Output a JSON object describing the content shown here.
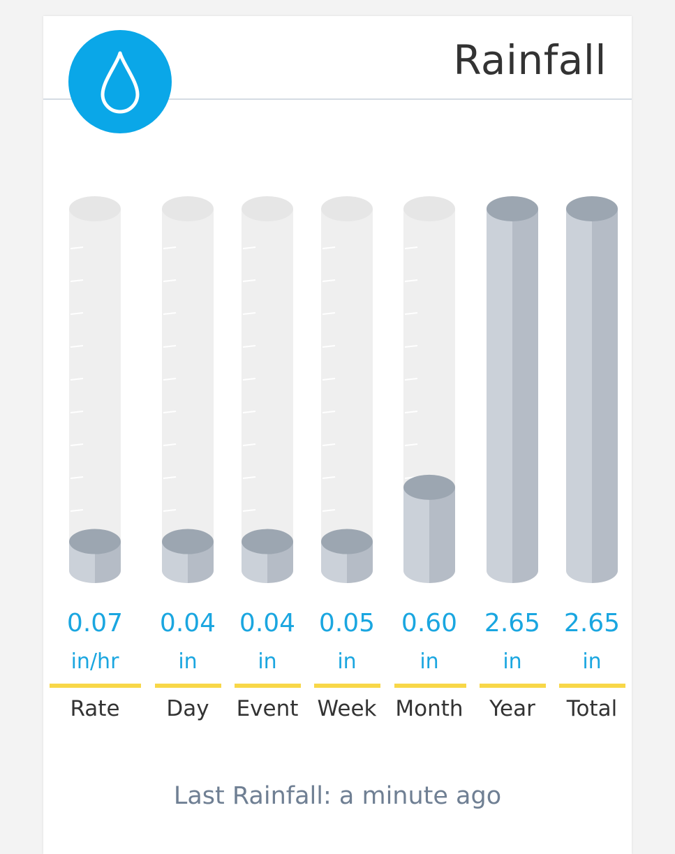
{
  "header": {
    "title": "Rainfall",
    "icon": "raindrop-icon",
    "accent": "#0aa7e8"
  },
  "gauges": [
    {
      "name": "Rate",
      "value": "0.07",
      "unit": "in/hr",
      "fill": 0.08
    },
    {
      "name": "Day",
      "value": "0.04",
      "unit": "in",
      "fill": 0.08
    },
    {
      "name": "Event",
      "value": "0.04",
      "unit": "in",
      "fill": 0.08
    },
    {
      "name": "Week",
      "value": "0.05",
      "unit": "in",
      "fill": 0.08
    },
    {
      "name": "Month",
      "value": "0.60",
      "unit": "in",
      "fill": 0.23
    },
    {
      "name": "Year",
      "value": "2.65",
      "unit": "in",
      "fill": 1.0
    },
    {
      "name": "Total",
      "value": "2.65",
      "unit": "in",
      "fill": 1.0
    }
  ],
  "footer": {
    "last_rainfall": "Last Rainfall: a minute ago"
  },
  "colors": {
    "value_text": "#1aa6e0",
    "underline": "#f8d748",
    "tube_empty": "#efefef",
    "liquid_top": "#9ca6b1",
    "liquid_body_left": "#cbd1d9",
    "liquid_body_right": "#b5bcc6"
  }
}
